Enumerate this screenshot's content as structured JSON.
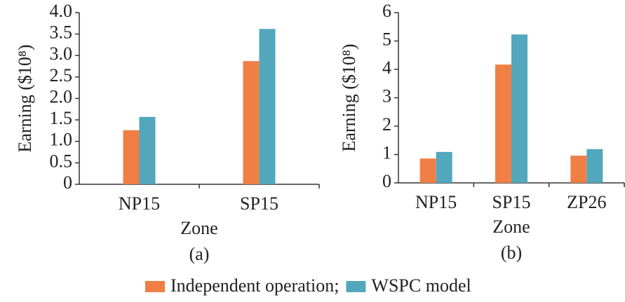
{
  "chart_data": [
    {
      "type": "bar",
      "caption": "(a)",
      "x_label": "Zone",
      "y_label": "Earning ($10⁸)",
      "categories": [
        "NP15",
        "SP15"
      ],
      "series": [
        {
          "name": "Independent operation;",
          "color": "#f07f45",
          "values": [
            1.26,
            2.87
          ]
        },
        {
          "name": "WSPC model",
          "color": "#52a7bd",
          "values": [
            1.57,
            3.62
          ]
        }
      ],
      "ylim": [
        0,
        4.0
      ],
      "yticks": [
        0,
        0.5,
        {
          "value": 1,
          "label": "1.0"
        },
        1.5,
        {
          "value": 2,
          "label": "2.0"
        },
        2.5,
        {
          "value": 3,
          "label": "3.0"
        },
        3.5,
        {
          "value": 4,
          "label": "4.0"
        }
      ]
    },
    {
      "type": "bar",
      "caption": "(b)",
      "x_label": "Zone",
      "y_label": "Earning ($10⁸)",
      "categories": [
        "NP15",
        "SP15",
        "ZP26"
      ],
      "series": [
        {
          "name": "Independent operation;",
          "color": "#f07f45",
          "values": [
            0.86,
            4.17,
            0.96
          ]
        },
        {
          "name": "WSPC model",
          "color": "#52a7bd",
          "values": [
            1.09,
            5.23,
            1.19
          ]
        }
      ],
      "ylim": [
        0,
        6
      ],
      "yticks": [
        0,
        1,
        2,
        3,
        4,
        5,
        6
      ]
    }
  ]
}
